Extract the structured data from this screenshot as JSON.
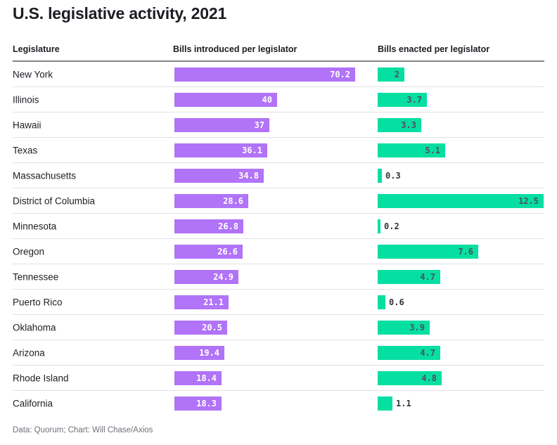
{
  "title": "U.S. legislative activity, 2021",
  "footer": "Data: Quorum; Chart: Will Chase/Axios",
  "columns": {
    "legislature": "Legislature",
    "introduced": "Bills introduced per legislator",
    "enacted": "Bills enacted per legislator"
  },
  "colors": {
    "introduced_bar": "#b173f7",
    "enacted_bar": "#06dfa2",
    "introduced_value_label": "#ffffff",
    "enacted_value_label": "#50505a",
    "outside_value_label": "#33333a"
  },
  "chart_data": {
    "type": "bar",
    "orientation": "horizontal",
    "title": "U.S. legislative activity, 2021",
    "categories": [
      "New York",
      "Illinois",
      "Hawaii",
      "Texas",
      "Massachusetts",
      "District of Columbia",
      "Minnesota",
      "Oregon",
      "Tennessee",
      "Puerto Rico",
      "Oklahoma",
      "Arizona",
      "Rhode Island",
      "California"
    ],
    "series": [
      {
        "name": "Bills introduced per legislator",
        "values": [
          70.2,
          40,
          37,
          36.1,
          34.8,
          28.6,
          26.8,
          26.6,
          24.9,
          21.1,
          20.5,
          19.4,
          18.4,
          18.3
        ]
      },
      {
        "name": "Bills enacted per legislator",
        "values": [
          2,
          3.7,
          3.3,
          5.1,
          0.3,
          12.5,
          0.2,
          7.6,
          4.7,
          0.6,
          3.9,
          4.7,
          4.8,
          1.1
        ]
      }
    ],
    "value_labels_shown": true,
    "xlim_introduced": [
      0,
      70.2
    ],
    "xlim_enacted": [
      0,
      12.5
    ],
    "grid": false,
    "legend": "column headers"
  }
}
